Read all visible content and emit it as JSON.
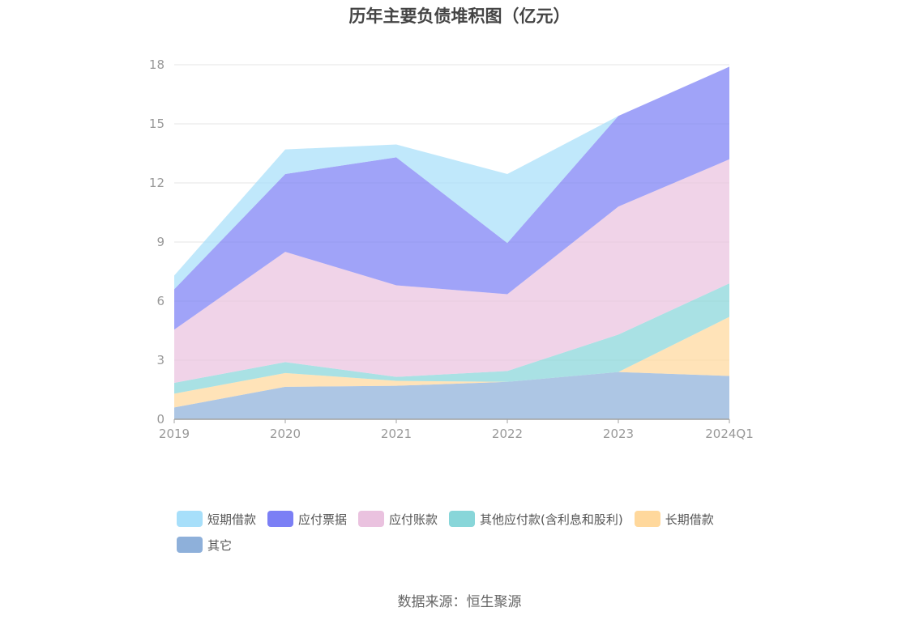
{
  "source_text": "数据来源：恒生聚源",
  "colors": {
    "grid": "#e6e6e6",
    "axis": "#a0a0a0",
    "tick_label": "#999999"
  },
  "chart_data": {
    "type": "area",
    "stacked": true,
    "title": "历年主要负债堆积图（亿元）",
    "xlabel": "",
    "ylabel": "",
    "categories": [
      "2019",
      "2020",
      "2021",
      "2022",
      "2023",
      "2024Q1"
    ],
    "ylim": [
      0,
      18
    ],
    "yticks": [
      0,
      3,
      6,
      9,
      12,
      15,
      18
    ],
    "grid": true,
    "legend_position": "bottom",
    "series": [
      {
        "name": "其它",
        "color": "#8eb0da",
        "values": [
          0.6,
          1.65,
          1.7,
          1.9,
          2.4,
          2.2
        ]
      },
      {
        "name": "长期借款",
        "color": "#ffd89c",
        "values": [
          0.7,
          0.7,
          0.25,
          0.0,
          0.0,
          3.0
        ]
      },
      {
        "name": "其他应付款(含利息和股利)",
        "color": "#88d6d9",
        "values": [
          0.55,
          0.55,
          0.2,
          0.55,
          1.9,
          1.7
        ]
      },
      {
        "name": "应付账款",
        "color": "#eac2df",
        "values": [
          2.7,
          5.6,
          4.65,
          3.9,
          6.5,
          6.3
        ]
      },
      {
        "name": "应付票据",
        "color": "#7b7ff5",
        "values": [
          2.05,
          3.95,
          6.5,
          2.6,
          4.6,
          4.7
        ]
      },
      {
        "name": "短期借款",
        "color": "#a7dffa",
        "values": [
          0.7,
          1.25,
          0.65,
          3.5,
          0.0,
          0.0
        ]
      }
    ],
    "legend_order": [
      "短期借款",
      "应付票据",
      "应付账款",
      "其他应付款(含利息和股利)",
      "长期借款",
      "其它"
    ]
  }
}
